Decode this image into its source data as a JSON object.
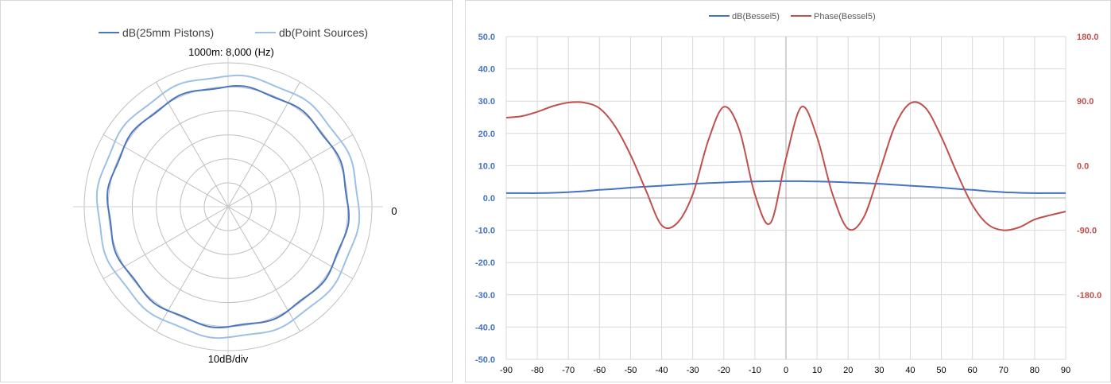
{
  "chart_data": [
    {
      "type": "polar",
      "title": "1000m: 8,000 (Hz)",
      "angle_label": "0",
      "radial_label": "10dB/div",
      "legend": {
        "position": "top"
      },
      "grid": true,
      "rings": 6,
      "spokes_deg": 30,
      "series": [
        {
          "name": "dB(25mm Pistons)",
          "color": "#4a76c0",
          "radius_fraction": 0.91,
          "ripple": 0.012
        },
        {
          "name": "db(Point Sources)",
          "color": "#9dc0e6",
          "radius_fraction": 0.99,
          "ripple": 0.01
        }
      ]
    },
    {
      "type": "line",
      "legend": {
        "position": "top"
      },
      "grid": true,
      "x": [
        -90,
        -85,
        -80,
        -75,
        -70,
        -65,
        -60,
        -55,
        -50,
        -45,
        -40,
        -35,
        -30,
        -25,
        -20,
        -15,
        -10,
        -5,
        0,
        5,
        10,
        15,
        20,
        25,
        30,
        35,
        40,
        45,
        50,
        55,
        60,
        65,
        70,
        75,
        80,
        85,
        90
      ],
      "xlim": [
        -90,
        90
      ],
      "xticks": [
        "-90",
        "-80",
        "-70",
        "-60",
        "-50",
        "-40",
        "-30",
        "-20",
        "-10",
        "0",
        "10",
        "20",
        "30",
        "40",
        "50",
        "60",
        "70",
        "80",
        "90"
      ],
      "y_left": {
        "lim": [
          -50,
          50
        ],
        "ticks": [
          "50.0",
          "40.0",
          "30.0",
          "20.0",
          "10.0",
          "0.0",
          "-10.0",
          "-20.0",
          "-30.0",
          "-40.0",
          "-50.0"
        ],
        "color": "#4472c4"
      },
      "y_right": {
        "lim": [
          -270,
          180
        ],
        "ticks": [
          "180.0",
          "90.0",
          "0.0",
          "-90.0",
          "-180.0"
        ],
        "color": "#c0504d"
      },
      "series": [
        {
          "name": "dB(Bessel5)",
          "axis": "left",
          "color": "#4472c4",
          "values": [
            1.5,
            1.5,
            1.5,
            1.6,
            1.8,
            2.1,
            2.5,
            2.8,
            3.2,
            3.5,
            3.8,
            4.1,
            4.4,
            4.6,
            4.8,
            5.0,
            5.1,
            5.2,
            5.2,
            5.2,
            5.1,
            5.0,
            4.8,
            4.6,
            4.4,
            4.1,
            3.8,
            3.5,
            3.2,
            2.8,
            2.5,
            2.1,
            1.8,
            1.6,
            1.5,
            1.5,
            1.5
          ]
        },
        {
          "name": "Phase(Bessel5)",
          "axis": "right",
          "color": "#c0504d",
          "values": [
            67,
            69,
            75,
            83,
            88,
            88,
            80,
            55,
            15,
            -35,
            -83,
            -80,
            -40,
            35,
            82,
            50,
            -40,
            -80,
            10,
            82,
            40,
            -40,
            -88,
            -72,
            -10,
            55,
            87,
            80,
            40,
            -10,
            -55,
            -82,
            -90,
            -86,
            -75,
            -69,
            -64
          ]
        }
      ]
    }
  ]
}
